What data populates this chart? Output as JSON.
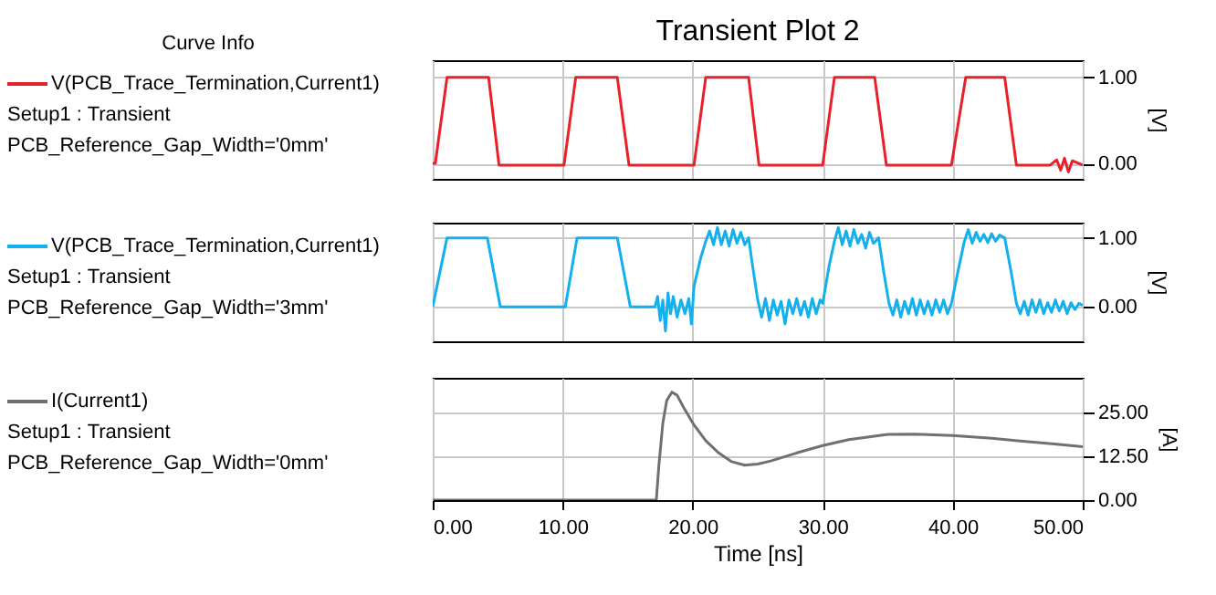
{
  "chart_data": [
    {
      "type": "line",
      "title": "Transient Plot 2",
      "legend_title": "Curve Info",
      "ylabel": "[V]",
      "xlim": [
        0,
        50
      ],
      "xticks": [
        {
          "value": 0,
          "label": null
        },
        {
          "value": 10,
          "label": null
        },
        {
          "value": 20,
          "label": null
        },
        {
          "value": 30,
          "label": null
        },
        {
          "value": 40,
          "label": null
        },
        {
          "value": 50,
          "label": null
        }
      ],
      "ylim": [
        -0.18,
        1.2
      ],
      "yticks": [
        {
          "value": 0,
          "label": "0.00"
        },
        {
          "value": 1,
          "label": "1.00"
        }
      ],
      "grid": true,
      "legend": "left",
      "tick_labels": "y",
      "annotations": [
        "Setup1 : Transient",
        "PCB_Reference_Gap_Width='0mm'"
      ],
      "series": [
        {
          "name": "V(PCB_Trace_Termination,Current1)",
          "color": "#e8202a",
          "x": [
            0,
            0.2,
            1.1,
            4.3,
            5.1,
            10.1,
            11.0,
            14.2,
            15.1,
            20.1,
            21.0,
            24.3,
            25.1,
            30.0,
            30.9,
            34.0,
            34.9,
            39.9,
            41.0,
            44.0,
            44.9,
            47.5,
            48.0,
            48.3,
            48.6,
            48.9,
            49.2,
            50
          ],
          "values": [
            0,
            0,
            1,
            1,
            -0.02,
            -0.02,
            1,
            1,
            -0.02,
            -0.02,
            1,
            1,
            -0.02,
            -0.02,
            1,
            1,
            -0.02,
            -0.02,
            1,
            1,
            -0.02,
            -0.02,
            0.04,
            -0.08,
            0.06,
            -0.1,
            0.03,
            -0.02
          ]
        }
      ]
    },
    {
      "type": "line",
      "ylabel": "[V]",
      "xlim": [
        0,
        50
      ],
      "xticks": [
        {
          "value": 0,
          "label": null
        },
        {
          "value": 10,
          "label": null
        },
        {
          "value": 20,
          "label": null
        },
        {
          "value": 30,
          "label": null
        },
        {
          "value": 40,
          "label": null
        },
        {
          "value": 50,
          "label": null
        }
      ],
      "ylim": [
        -0.5,
        1.22
      ],
      "yticks": [
        {
          "value": 0,
          "label": "0.00"
        },
        {
          "value": 1,
          "label": "1.00"
        }
      ],
      "grid": true,
      "legend": "left",
      "tick_labels": "y",
      "annotations": [
        "Setup1 : Transient",
        "PCB_Reference_Gap_Width='3mm'"
      ],
      "series": [
        {
          "name": "V(PCB_Trace_Termination,Current1)",
          "color": "#12b0ec",
          "x": [
            0,
            1.1,
            4.2,
            5.2,
            10.2,
            11.1,
            14.2,
            15.2,
            17.1,
            17.3,
            17.5,
            17.7,
            17.9,
            18.1,
            18.3,
            18.5,
            18.8,
            19.1,
            19.4,
            19.7,
            19.9,
            20.1,
            20.6,
            21.0,
            21.3,
            21.6,
            21.9,
            22.2,
            22.5,
            22.8,
            23.1,
            23.4,
            23.7,
            24.0,
            24.3,
            24.6,
            25.0,
            25.3,
            25.6,
            25.9,
            26.2,
            26.5,
            26.8,
            27.1,
            27.4,
            27.7,
            28.0,
            28.3,
            28.6,
            28.9,
            29.2,
            29.5,
            29.8,
            30.0,
            30.5,
            30.9,
            31.2,
            31.5,
            31.8,
            32.1,
            32.4,
            32.7,
            33.0,
            33.3,
            33.6,
            33.9,
            34.3,
            34.7,
            35.1,
            35.4,
            35.7,
            36.0,
            36.3,
            36.6,
            36.9,
            37.2,
            37.5,
            37.8,
            38.1,
            38.4,
            38.7,
            39.0,
            39.3,
            39.6,
            39.9,
            40.5,
            40.9,
            41.2,
            41.5,
            41.8,
            42.1,
            42.4,
            42.7,
            43.0,
            43.3,
            43.6,
            44.0,
            44.5,
            44.9,
            45.2,
            45.5,
            45.8,
            46.1,
            46.4,
            46.7,
            47.0,
            47.3,
            47.6,
            47.9,
            48.2,
            48.5,
            48.8,
            49.1,
            49.4,
            49.7,
            50
          ],
          "values": [
            0,
            1,
            1,
            0,
            0,
            1,
            1,
            0,
            0,
            0.15,
            -0.2,
            0.1,
            -0.35,
            0.2,
            -0.1,
            0.15,
            -0.15,
            0.1,
            -0.1,
            0.12,
            -0.25,
            0.3,
            0.7,
            0.95,
            1.1,
            0.9,
            1.15,
            0.9,
            1.1,
            0.88,
            1.12,
            0.92,
            1.08,
            0.9,
            1.0,
            0.6,
            0.1,
            -0.15,
            0.12,
            -0.2,
            0.1,
            -0.12,
            0.08,
            -0.25,
            0.1,
            -0.1,
            0.12,
            -0.12,
            0.08,
            -0.15,
            0.12,
            -0.1,
            0.1,
            0.05,
            0.6,
            0.95,
            1.15,
            0.9,
            1.1,
            0.88,
            1.12,
            0.92,
            1.05,
            0.85,
            1.08,
            0.92,
            1.0,
            0.5,
            0.05,
            -0.12,
            0.1,
            -0.15,
            0.08,
            -0.1,
            0.12,
            -0.12,
            0.1,
            -0.1,
            0.08,
            -0.12,
            0.1,
            -0.08,
            0.1,
            -0.1,
            0.05,
            0.6,
            0.95,
            1.12,
            0.92,
            1.08,
            0.95,
            1.05,
            0.93,
            1.06,
            0.95,
            1.04,
            1.0,
            0.5,
            0.05,
            -0.1,
            0.08,
            -0.12,
            0.1,
            -0.08,
            0.1,
            -0.1,
            0.06,
            -0.08,
            0.1,
            -0.06,
            0.08,
            -0.1,
            0.06,
            -0.04,
            0.05,
            0.02
          ]
        }
      ]
    },
    {
      "type": "line",
      "xlabel": "Time [ns]",
      "ylabel": "[A]",
      "xlim": [
        0,
        50
      ],
      "xticks": [
        {
          "value": 0,
          "label": "0.00"
        },
        {
          "value": 10,
          "label": "10.00"
        },
        {
          "value": 20,
          "label": "20.00"
        },
        {
          "value": 30,
          "label": "30.00"
        },
        {
          "value": 40,
          "label": "40.00"
        },
        {
          "value": 50,
          "label": "50.00"
        }
      ],
      "ylim": [
        0,
        35
      ],
      "yticks": [
        {
          "value": 0,
          "label": "0.00"
        },
        {
          "value": 12.5,
          "label": "12.50"
        },
        {
          "value": 25,
          "label": "25.00"
        }
      ],
      "grid": true,
      "legend": "left",
      "annotations": [
        "Setup1 : Transient",
        "PCB_Reference_Gap_Width='0mm'"
      ],
      "series": [
        {
          "name": "I(Current1)",
          "color": "#707070",
          "x": [
            0,
            17.2,
            17.4,
            17.7,
            18.0,
            18.4,
            18.8,
            19.3,
            20.1,
            21,
            22,
            23,
            24,
            25,
            26,
            28,
            30,
            32,
            35,
            37,
            40,
            43,
            45,
            48,
            50
          ],
          "values": [
            0,
            0,
            10,
            22,
            28.5,
            30.9,
            30,
            26.5,
            21.5,
            17,
            13.5,
            11,
            10,
            10.3,
            11.2,
            13.5,
            15.6,
            17.3,
            18.8,
            18.9,
            18.5,
            17.7,
            17,
            16,
            15.3
          ]
        }
      ]
    }
  ]
}
